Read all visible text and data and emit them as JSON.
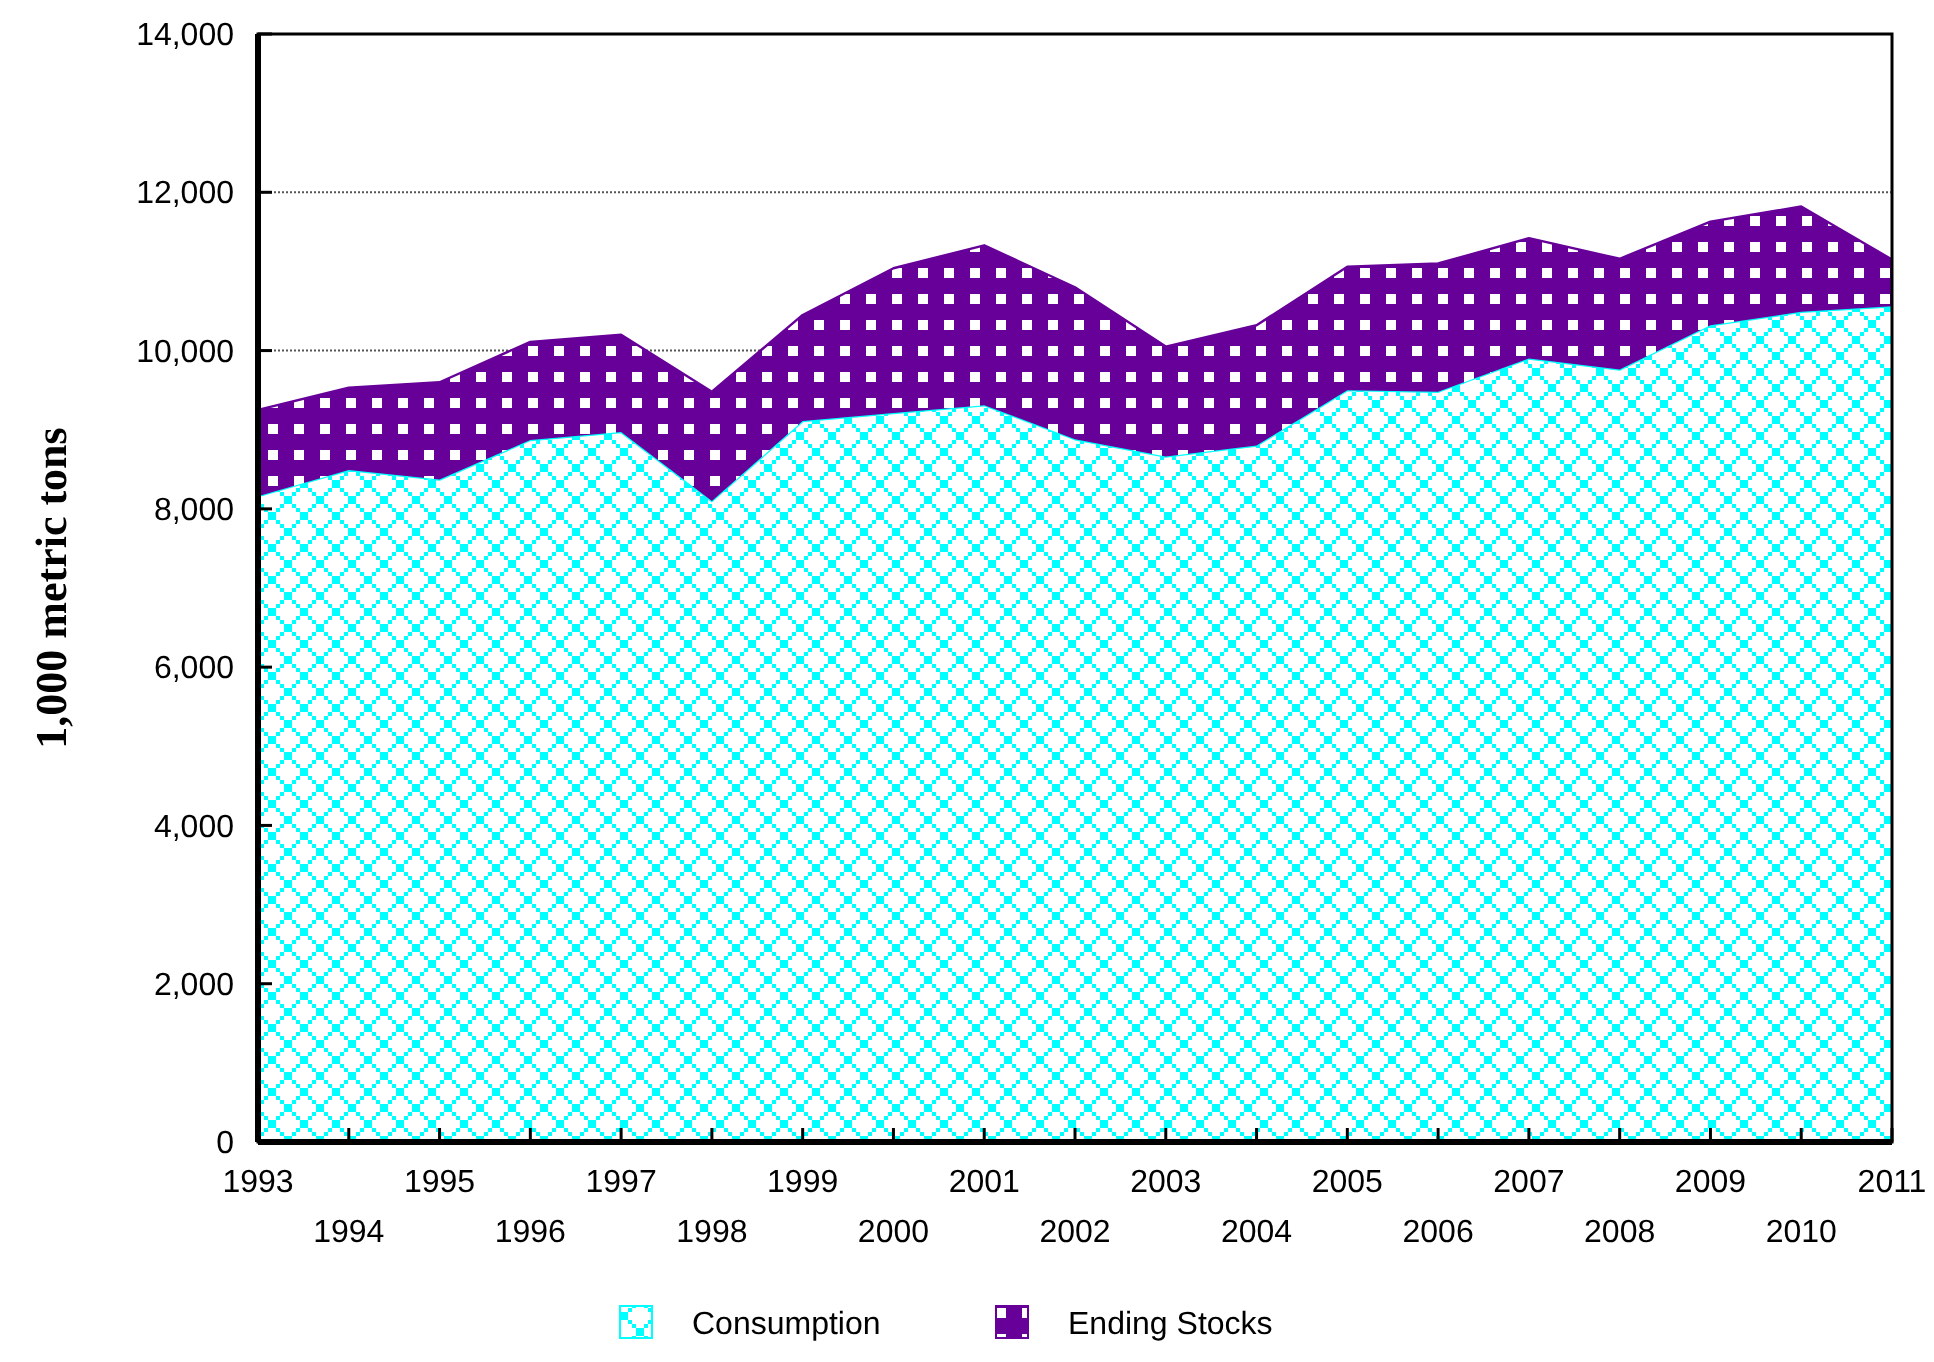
{
  "chart_data": {
    "type": "area",
    "stacked": true,
    "ylabel": "1,000 metric tons",
    "x": [
      1993,
      1994,
      1995,
      1996,
      1997,
      1998,
      1999,
      2000,
      2001,
      2002,
      2003,
      2004,
      2005,
      2006,
      2007,
      2008,
      2009,
      2010,
      2011
    ],
    "series": [
      {
        "name": "Consumption",
        "color": "#00ffff",
        "values": [
          8160,
          8490,
          8370,
          8870,
          8970,
          8100,
          9110,
          9210,
          9310,
          8880,
          8660,
          8800,
          9500,
          9480,
          9900,
          9760,
          10320,
          10490,
          10560
        ]
      },
      {
        "name": "Ending Stocks",
        "color": "#660099",
        "values": [
          1090,
          1040,
          1230,
          1240,
          1230,
          1380,
          1340,
          1830,
          2020,
          1920,
          1390,
          1520,
          1560,
          1620,
          1520,
          1400,
          1310,
          1330,
          590
        ]
      }
    ],
    "xlim": [
      1993,
      2011
    ],
    "xticks": [
      1993,
      {
        "value": 1994,
        "label": null
      },
      1995,
      {
        "value": 1996,
        "label": null
      },
      1997,
      {
        "value": 1998,
        "label": null
      },
      1999,
      {
        "value": 2000,
        "label": null
      },
      2001,
      {
        "value": 2002,
        "label": null
      },
      2003,
      {
        "value": 2004,
        "label": null
      },
      2005,
      {
        "value": 2006,
        "label": null
      },
      2007,
      {
        "value": 2008,
        "label": null
      },
      2009,
      {
        "value": 2010,
        "label": null
      },
      2011
    ],
    "annotations": [
      "1994",
      "1996",
      "1998",
      "2000",
      "2002",
      "2004",
      "2006",
      "2008",
      "2010"
    ],
    "ylim": [
      0,
      14000
    ],
    "yticks": [
      {
        "value": 0,
        "label": "0"
      },
      {
        "value": 2000,
        "label": "2,000"
      },
      {
        "value": 4000,
        "label": "4,000"
      },
      {
        "value": 6000,
        "label": "6,000"
      },
      {
        "value": 8000,
        "label": "8,000"
      },
      {
        "value": 10000,
        "label": "10,000"
      },
      {
        "value": 12000,
        "label": "12,000"
      },
      {
        "value": 14000,
        "label": "14,000"
      }
    ],
    "grid": "y",
    "legend": "bottom"
  }
}
